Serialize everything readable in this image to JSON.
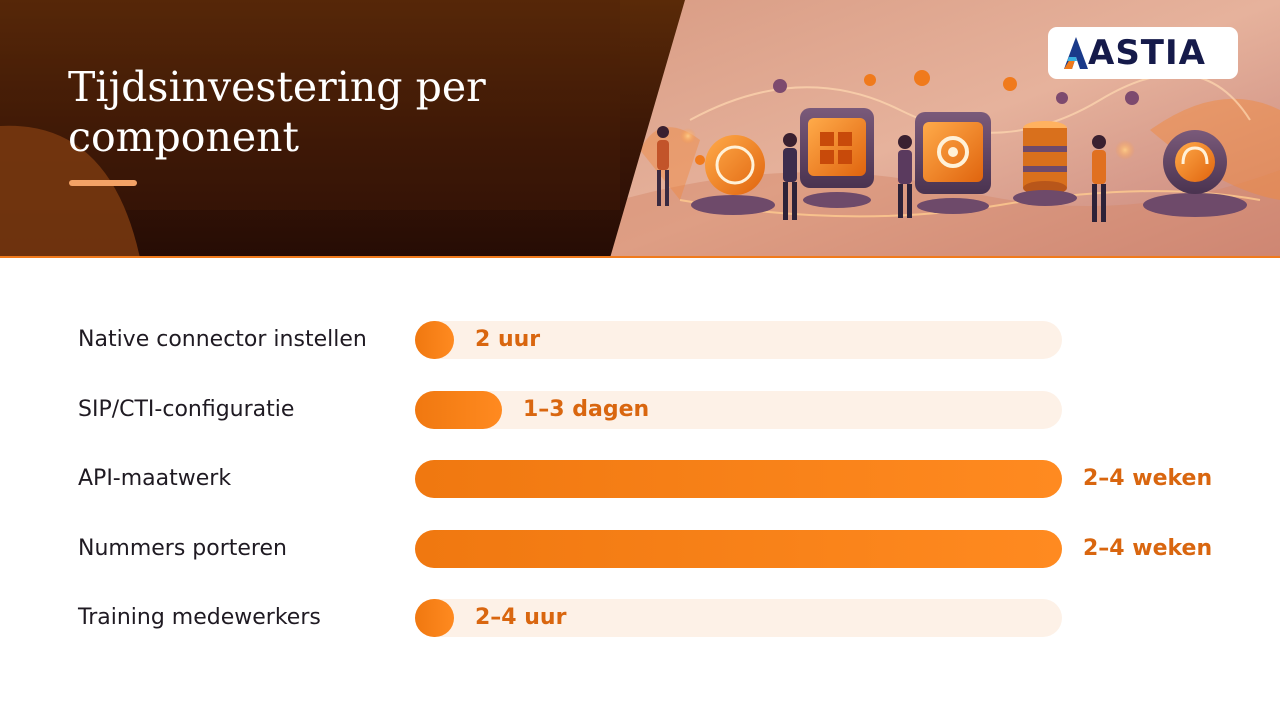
{
  "header": {
    "title": "Tijdsinvestering per component",
    "logo_text": "ASTIA"
  },
  "colors": {
    "accent": "#f07a1c",
    "bar": "#ff8a20",
    "track": "#fdf1e7",
    "value_text": "#d9660f",
    "header_dark": "#3a1606"
  },
  "chart_data": {
    "type": "bar",
    "orientation": "horizontal",
    "categories": [
      "Native connector instellen",
      "SIP/CTI-configuratie",
      "API-maatwerk",
      "Nummers porteren",
      "Training medewerkers"
    ],
    "value_labels": [
      "2 uur",
      "1–3 dagen",
      "2–4 weken",
      "2–4 weken",
      "2–4 uur"
    ],
    "values": [
      0.06,
      0.135,
      1.0,
      1.0,
      0.06
    ],
    "xlim": [
      0,
      1
    ],
    "grid": false,
    "legend": "none"
  }
}
